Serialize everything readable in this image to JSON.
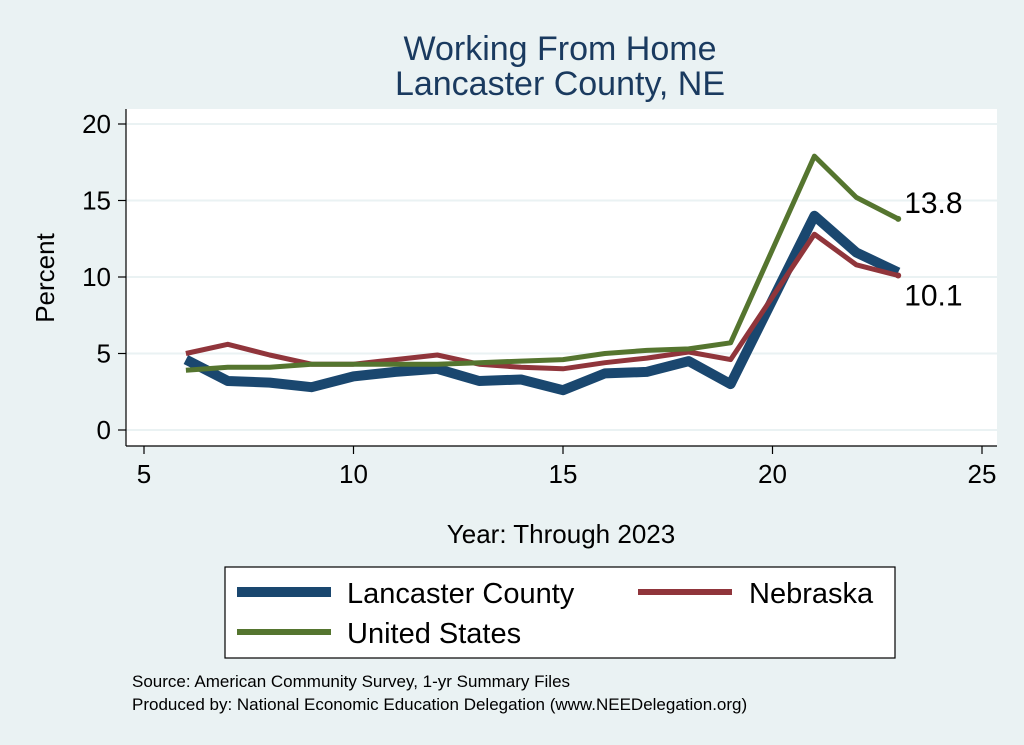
{
  "chart_data": {
    "type": "line",
    "title": [
      "Working From Home",
      "Lancaster County, NE"
    ],
    "xlabel": "Year: Through 2023",
    "ylabel": "Percent",
    "xlim": [
      5,
      25
    ],
    "ylim": [
      0,
      20
    ],
    "xticks": [
      5,
      10,
      15,
      20,
      25
    ],
    "yticks": [
      0,
      5,
      10,
      15,
      20
    ],
    "grid": true,
    "x": [
      6,
      7,
      8,
      9,
      10,
      11,
      12,
      13,
      14,
      15,
      16,
      17,
      18,
      19,
      21,
      22,
      23
    ],
    "series": [
      {
        "name": "Lancaster County",
        "color": "#1a476f",
        "values": [
          4.6,
          3.2,
          3.1,
          2.8,
          3.5,
          3.8,
          4.0,
          3.2,
          3.3,
          2.6,
          3.7,
          3.8,
          4.5,
          3.0,
          14.0,
          11.6,
          10.3
        ]
      },
      {
        "name": "Nebraska",
        "color": "#90353b",
        "values": [
          5.0,
          5.6,
          4.9,
          4.3,
          4.3,
          4.6,
          4.9,
          4.3,
          4.1,
          4.0,
          4.4,
          4.7,
          5.1,
          4.6,
          12.8,
          10.8,
          10.1
        ]
      },
      {
        "name": "United States",
        "color": "#55752f",
        "values": [
          3.9,
          4.1,
          4.1,
          4.3,
          4.3,
          4.3,
          4.3,
          4.4,
          4.5,
          4.6,
          5.0,
          5.2,
          5.3,
          5.7,
          17.9,
          15.2,
          13.8
        ]
      }
    ],
    "annotations": [
      {
        "text": "13.8",
        "series": "United States",
        "x": 23,
        "y": 13.8
      },
      {
        "text": "10.1",
        "series": "Nebraska",
        "x": 23,
        "y": 10.1
      }
    ],
    "legend_placement": "bottom",
    "source_lines": [
      "Source: American Community Survey, 1-yr Summary Files",
      "Produced by: National Economic Education Delegation (www.NEEDelegation.org)"
    ]
  }
}
